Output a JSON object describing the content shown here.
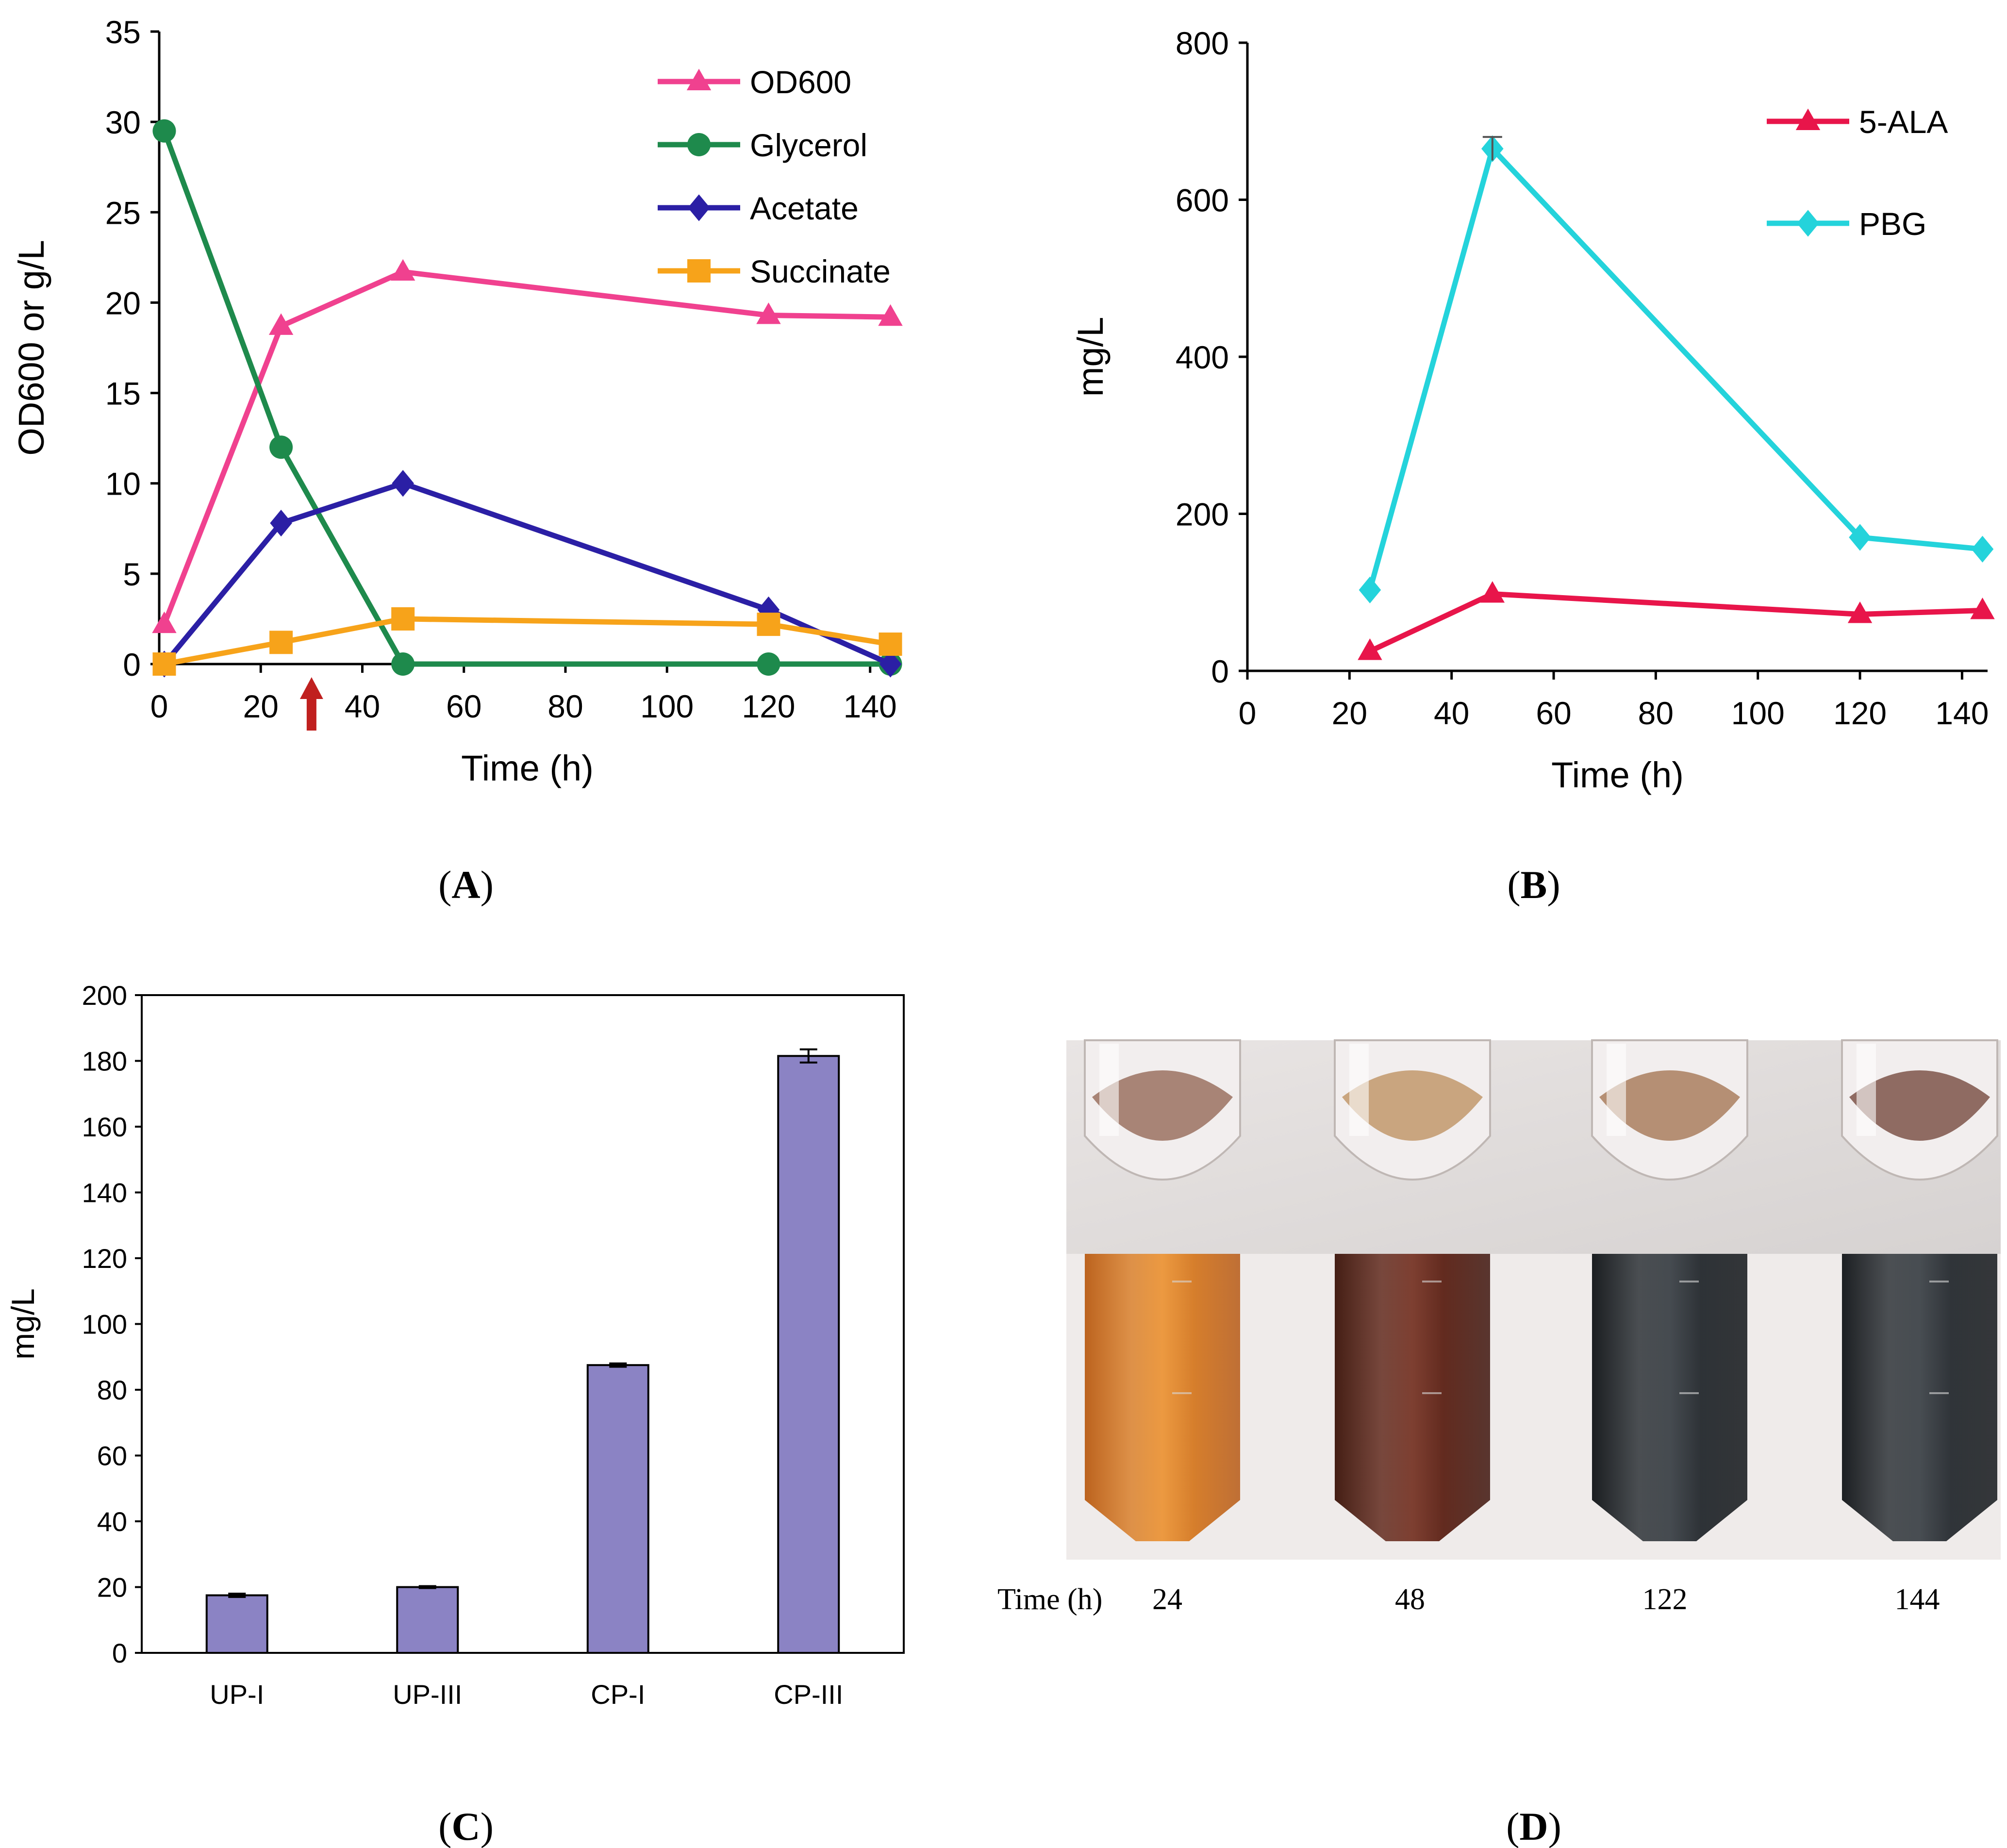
{
  "colors": {
    "od600": "#f0418f",
    "glycerol": "#1e8a4c",
    "acetate": "#2b1fa5",
    "succinate": "#f7a31a",
    "ala": "#e8154a",
    "pbg": "#24d3db",
    "bar": "#8b83c4",
    "arrow": "#c0201f"
  },
  "chart_data": [
    {
      "panel": "A",
      "type": "line",
      "panel_label": "A",
      "xlabel": "Time (h)",
      "ylabel": "OD600 or g/L",
      "xlim": [
        0,
        145
      ],
      "ylim": [
        0,
        35
      ],
      "x_ticks": [
        "0",
        "20",
        "40",
        "60",
        "80",
        "100",
        "120",
        "140"
      ],
      "y_ticks": [
        "0",
        "5",
        "10",
        "15",
        "20",
        "25",
        "30",
        "35"
      ],
      "legend_position": "top-right",
      "series": [
        {
          "name": "OD600",
          "marker": "triangle",
          "x": [
            1,
            24,
            48,
            120,
            144
          ],
          "y": [
            2.2,
            18.7,
            21.7,
            19.3,
            19.2
          ]
        },
        {
          "name": "Glycerol",
          "marker": "circle",
          "x": [
            1,
            24,
            48,
            120,
            144
          ],
          "y": [
            29.5,
            12.0,
            0.0,
            0.0,
            0.0
          ]
        },
        {
          "name": "Acetate",
          "marker": "diamond",
          "x": [
            1,
            24,
            48,
            120,
            144
          ],
          "y": [
            0.0,
            7.8,
            10.0,
            3.0,
            0.0
          ]
        },
        {
          "name": "Succinate",
          "marker": "square",
          "x": [
            1,
            24,
            48,
            120,
            144
          ],
          "y": [
            0.0,
            1.2,
            2.5,
            2.2,
            1.1
          ]
        }
      ],
      "annotation": {
        "type": "arrow",
        "x": 30
      }
    },
    {
      "panel": "B",
      "type": "line",
      "panel_label": "B",
      "xlabel": "Time (h)",
      "ylabel": "mg/L",
      "xlim": [
        0,
        145
      ],
      "ylim": [
        0,
        800
      ],
      "x_ticks": [
        "0",
        "20",
        "40",
        "60",
        "80",
        "100",
        "120",
        "140"
      ],
      "y_ticks": [
        "0",
        "200",
        "400",
        "600",
        "800"
      ],
      "legend_position": "top-right",
      "series": [
        {
          "name": "5-ALA",
          "marker": "triangle",
          "x": [
            24,
            48,
            120,
            144
          ],
          "y": [
            25,
            98,
            72,
            77
          ]
        },
        {
          "name": "PBG",
          "marker": "diamond",
          "x": [
            24,
            48,
            120,
            144
          ],
          "y": [
            103,
            665,
            170,
            155
          ]
        }
      ]
    },
    {
      "panel": "C",
      "type": "bar",
      "panel_label": "C",
      "xlabel": "",
      "ylabel": "mg/L",
      "ylim": [
        0,
        200
      ],
      "y_ticks": [
        "0",
        "20",
        "40",
        "60",
        "80",
        "100",
        "120",
        "140",
        "160",
        "180",
        "200"
      ],
      "categories": [
        "UP-I",
        "UP-III",
        "CP-I",
        "CP-III"
      ],
      "values": [
        17.5,
        20.0,
        87.5,
        181.5
      ],
      "errors": [
        0.5,
        0.3,
        0.5,
        2.0
      ]
    }
  ],
  "panel_d": {
    "panel_label": "D",
    "time_label": "Time (h)",
    "times": [
      "24",
      "48",
      "122",
      "144"
    ]
  }
}
